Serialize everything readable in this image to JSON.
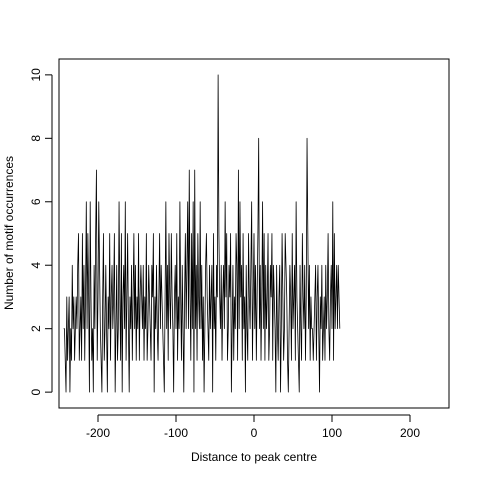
{
  "chart_data": {
    "type": "line",
    "title": "",
    "xlabel": "Distance to peak centre",
    "ylabel": "Number of motif occurrences",
    "xlim": [
      -250,
      250
    ],
    "ylim": [
      -0.5,
      10.5
    ],
    "x_ticks": [
      -200,
      -100,
      0,
      100,
      200
    ],
    "y_ticks": [
      0,
      2,
      4,
      6,
      8,
      10
    ],
    "x_tick_labels": [
      "-200",
      "-100",
      "0",
      "100",
      "200"
    ],
    "y_tick_labels": [
      "0",
      "2",
      "4",
      "6",
      "8",
      "10"
    ],
    "grid": false,
    "line_color": "#000000",
    "series": [
      {
        "x_start": -244,
        "x_step": 1,
        "values": [
          2,
          2,
          1,
          0,
          3,
          1,
          2,
          3,
          0,
          2,
          1,
          4,
          2,
          3,
          1,
          2,
          3,
          2,
          4,
          5,
          1,
          2,
          3,
          1,
          5,
          2,
          4,
          1,
          3,
          6,
          2,
          5,
          3,
          0,
          6,
          3,
          1,
          2,
          0,
          4,
          2,
          5,
          7,
          1,
          3,
          6,
          4,
          2,
          1,
          0,
          3,
          5,
          1,
          2,
          4,
          2,
          0,
          3,
          2,
          5,
          1,
          3,
          4,
          2,
          3,
          5,
          0,
          2,
          4,
          1,
          2,
          6,
          3,
          1,
          5,
          0,
          3,
          4,
          2,
          6,
          1,
          3,
          5,
          2,
          0,
          3,
          2,
          4,
          1,
          3,
          5,
          2,
          4,
          1,
          3,
          2,
          5,
          1,
          3,
          4,
          3,
          2,
          4,
          1,
          3,
          2,
          5,
          1,
          2,
          4,
          3,
          2,
          1,
          4,
          3,
          5,
          0,
          3,
          2,
          4,
          2,
          1,
          3,
          5,
          2,
          4,
          3,
          2,
          1,
          0,
          3,
          6,
          2,
          4,
          1,
          5,
          3,
          2,
          5,
          3,
          2,
          0,
          3,
          4,
          2,
          5,
          1,
          3,
          2,
          6,
          3,
          1,
          4,
          2,
          0,
          3,
          5,
          2,
          4,
          6,
          2,
          7,
          3,
          1,
          5,
          2,
          6,
          0,
          7,
          2,
          4,
          1,
          5,
          3,
          2,
          6,
          2,
          4,
          1,
          3,
          0,
          2,
          4,
          5,
          3,
          2,
          1,
          4,
          2,
          3,
          4,
          0,
          5,
          2,
          3,
          1,
          4,
          3,
          10,
          5,
          3,
          2,
          4,
          1,
          3,
          4,
          2,
          6,
          3,
          5,
          1,
          2,
          4,
          3,
          5,
          0,
          2,
          4,
          1,
          3,
          2,
          5,
          4,
          1,
          7,
          2,
          6,
          3,
          4,
          1,
          5,
          2,
          3,
          0,
          4,
          2,
          1,
          5,
          3,
          2,
          4,
          6,
          1,
          3,
          5,
          2,
          4,
          1,
          3,
          5,
          8,
          2,
          4,
          1,
          3,
          6,
          2,
          5,
          1,
          4,
          2,
          3,
          5,
          1,
          2,
          4,
          3,
          5,
          1,
          4,
          3,
          2,
          0,
          4,
          2,
          1,
          3,
          4,
          0,
          2,
          5,
          3,
          1,
          2,
          5,
          4,
          3,
          1,
          0,
          2,
          4,
          3,
          1,
          5,
          2,
          3,
          4,
          1,
          6,
          3,
          2,
          1,
          0,
          4,
          2,
          1,
          5,
          3,
          2,
          4,
          1,
          3,
          8,
          5,
          2,
          4,
          1,
          3,
          2,
          2,
          1,
          2,
          3,
          4,
          1,
          3,
          4,
          2,
          0,
          3,
          2,
          4,
          1,
          2,
          3,
          1,
          4,
          2,
          3,
          5,
          2,
          1,
          3,
          4,
          2,
          6,
          1,
          5,
          2,
          3,
          4,
          2,
          4,
          3,
          2
        ]
      }
    ]
  }
}
